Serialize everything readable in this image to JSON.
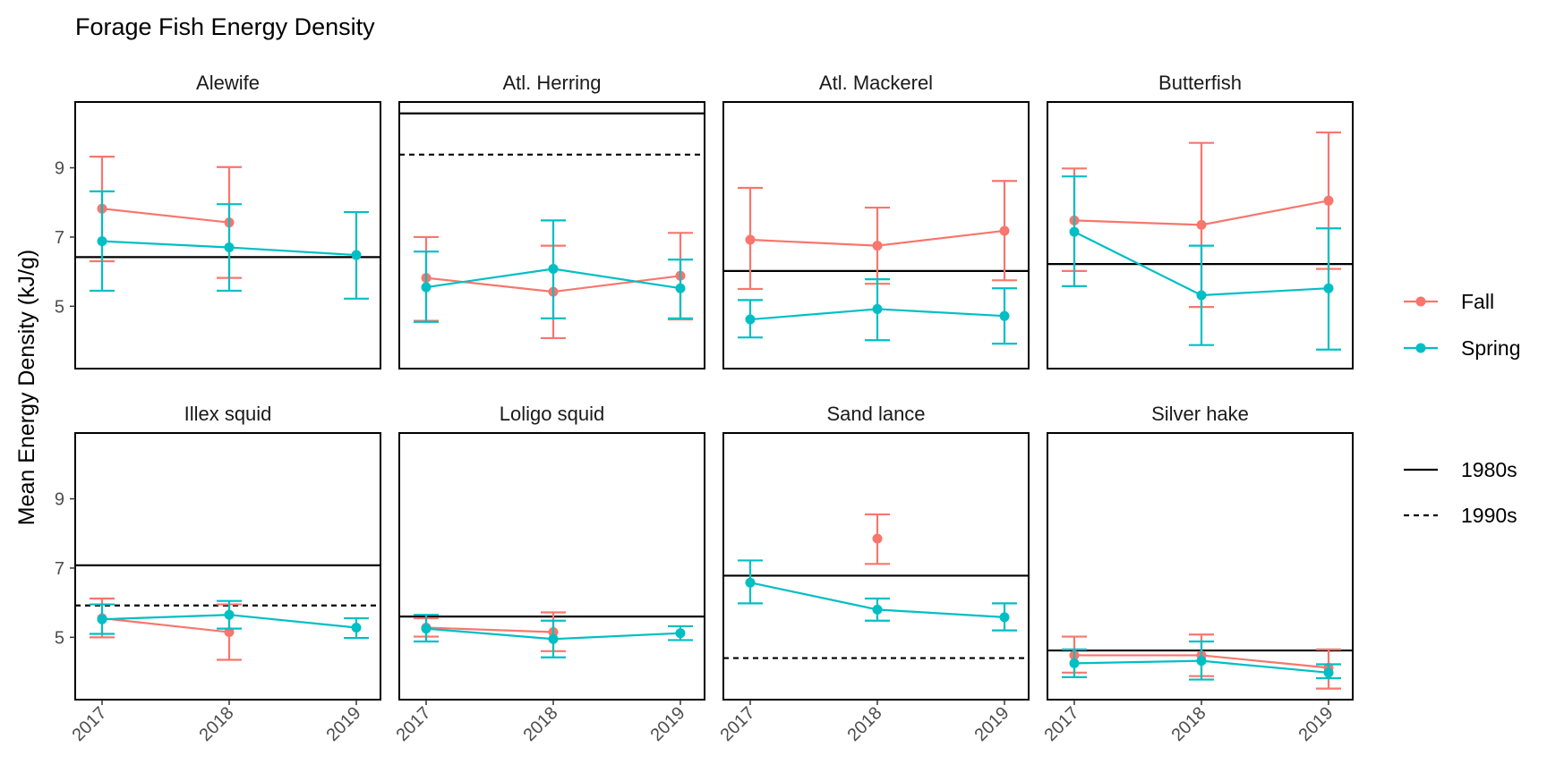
{
  "chart_data": {
    "type": "line",
    "title": "Forage Fish Energy Density",
    "xlabel": "",
    "ylabel": "Mean Energy Density (kJ/g)",
    "x": [
      "2017",
      "2018",
      "2019"
    ],
    "ylim": [
      3.2,
      10.9
    ],
    "yticks": [
      5,
      7,
      9
    ],
    "grid": false,
    "legend_position": "right",
    "colors": {
      "Fall": "#F8766D",
      "Spring": "#00BFC4",
      "ref": "#000000"
    },
    "legend_season": [
      {
        "name": "Fall",
        "key": "fall"
      },
      {
        "name": "Spring",
        "key": "spring"
      }
    ],
    "legend_ref": [
      {
        "name": "1980s",
        "style": "solid"
      },
      {
        "name": "1990s",
        "style": "dashed"
      }
    ],
    "panels": [
      {
        "title": "Alewife",
        "ref1980s": 6.42,
        "ref1990s": null,
        "fall": {
          "years": [
            "2017",
            "2018"
          ],
          "mean": [
            7.82,
            7.42
          ],
          "lo": [
            6.3,
            5.82
          ],
          "hi": [
            9.32,
            9.02
          ]
        },
        "spring": {
          "years": [
            "2017",
            "2018",
            "2019"
          ],
          "mean": [
            6.88,
            6.7,
            6.48
          ],
          "lo": [
            5.45,
            5.45,
            5.22
          ],
          "hi": [
            8.32,
            7.95,
            7.72
          ]
        }
      },
      {
        "title": "Atl. Herring",
        "ref1980s": 10.57,
        "ref1990s": 9.38,
        "fall": {
          "years": [
            "2017",
            "2018",
            "2019"
          ],
          "mean": [
            5.82,
            5.42,
            5.88
          ],
          "lo": [
            4.58,
            4.08,
            4.62
          ],
          "hi": [
            7.0,
            6.75,
            7.12
          ]
        },
        "spring": {
          "years": [
            "2017",
            "2018",
            "2019"
          ],
          "mean": [
            5.55,
            6.08,
            5.52
          ],
          "lo": [
            4.55,
            4.65,
            4.65
          ],
          "hi": [
            6.58,
            7.48,
            6.35
          ]
        }
      },
      {
        "title": "Atl. Mackerel",
        "ref1980s": 6.02,
        "ref1990s": null,
        "fall": {
          "years": [
            "2017",
            "2018",
            "2019"
          ],
          "mean": [
            6.92,
            6.75,
            7.18
          ],
          "lo": [
            5.5,
            5.65,
            5.75
          ],
          "hi": [
            8.42,
            7.85,
            8.62
          ]
        },
        "spring": {
          "years": [
            "2017",
            "2018",
            "2019"
          ],
          "mean": [
            4.62,
            4.92,
            4.72
          ],
          "lo": [
            4.1,
            4.02,
            3.92
          ],
          "hi": [
            5.18,
            5.78,
            5.52
          ]
        }
      },
      {
        "title": "Butterfish",
        "ref1980s": 6.22,
        "ref1990s": null,
        "fall": {
          "years": [
            "2017",
            "2018",
            "2019"
          ],
          "mean": [
            7.48,
            7.35,
            8.05
          ],
          "lo": [
            6.02,
            4.98,
            6.08
          ],
          "hi": [
            8.98,
            9.72,
            10.02
          ]
        },
        "spring": {
          "years": [
            "2017",
            "2018",
            "2019"
          ],
          "mean": [
            7.15,
            5.32,
            5.52
          ],
          "lo": [
            5.58,
            3.88,
            3.75
          ],
          "hi": [
            8.75,
            6.75,
            7.25
          ]
        }
      },
      {
        "title": "Illex squid",
        "ref1980s": 7.08,
        "ref1990s": 5.92,
        "fall": {
          "years": [
            "2017",
            "2018"
          ],
          "mean": [
            5.55,
            5.15
          ],
          "lo": [
            5.0,
            4.35
          ],
          "hi": [
            6.12,
            5.95
          ]
        },
        "spring": {
          "years": [
            "2017",
            "2018",
            "2019"
          ],
          "mean": [
            5.52,
            5.65,
            5.28
          ],
          "lo": [
            5.1,
            5.25,
            4.98
          ],
          "hi": [
            5.95,
            6.05,
            5.55
          ]
        }
      },
      {
        "title": "Loligo squid",
        "ref1980s": 5.6,
        "ref1990s": null,
        "fall": {
          "years": [
            "2017",
            "2018"
          ],
          "mean": [
            5.28,
            5.15
          ],
          "lo": [
            5.02,
            4.6
          ],
          "hi": [
            5.55,
            5.72
          ]
        },
        "spring": {
          "years": [
            "2017",
            "2018",
            "2019"
          ],
          "mean": [
            5.25,
            4.95,
            5.12
          ],
          "lo": [
            4.88,
            4.42,
            4.92
          ],
          "hi": [
            5.65,
            5.48,
            5.32
          ]
        }
      },
      {
        "title": "Sand lance",
        "ref1980s": 6.78,
        "ref1990s": 4.4,
        "fall": {
          "years": [
            "2018"
          ],
          "mean": [
            7.85
          ],
          "lo": [
            7.12
          ],
          "hi": [
            8.55
          ]
        },
        "spring": {
          "years": [
            "2017",
            "2018",
            "2019"
          ],
          "mean": [
            6.58,
            5.8,
            5.58
          ],
          "lo": [
            5.98,
            5.48,
            5.2
          ],
          "hi": [
            7.22,
            6.12,
            5.98
          ]
        }
      },
      {
        "title": "Silver hake",
        "ref1980s": 4.62,
        "ref1990s": null,
        "fall": {
          "years": [
            "2017",
            "2018",
            "2019"
          ],
          "mean": [
            4.48,
            4.48,
            4.12
          ],
          "lo": [
            3.98,
            3.88,
            3.52
          ],
          "hi": [
            5.02,
            5.08,
            4.65
          ]
        },
        "spring": {
          "years": [
            "2017",
            "2018",
            "2019"
          ],
          "mean": [
            4.25,
            4.32,
            3.98
          ],
          "lo": [
            3.85,
            3.78,
            3.82
          ],
          "hi": [
            4.65,
            4.88,
            4.22
          ]
        }
      }
    ]
  }
}
